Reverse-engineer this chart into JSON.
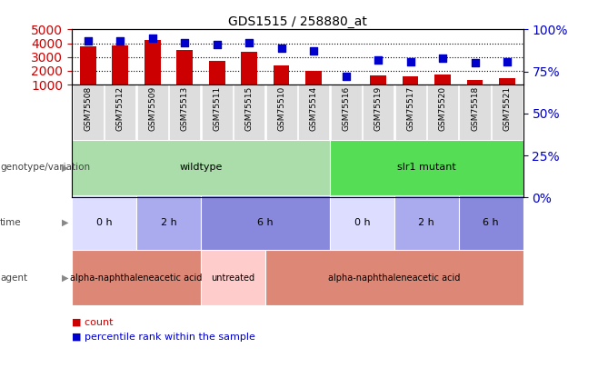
{
  "title": "GDS1515 / 258880_at",
  "samples": [
    "GSM75508",
    "GSM75512",
    "GSM75509",
    "GSM75513",
    "GSM75511",
    "GSM75515",
    "GSM75510",
    "GSM75514",
    "GSM75516",
    "GSM75519",
    "GSM75517",
    "GSM75520",
    "GSM75518",
    "GSM75521"
  ],
  "counts": [
    3780,
    3870,
    4230,
    3500,
    2720,
    3380,
    2360,
    1990,
    950,
    1640,
    1570,
    1720,
    1330,
    1500
  ],
  "percentiles": [
    93,
    93,
    95,
    92,
    91,
    92,
    89,
    87,
    72,
    82,
    81,
    83,
    80,
    81
  ],
  "ylim_left": [
    1000,
    5000
  ],
  "ylim_right": [
    0,
    100
  ],
  "yticks_left": [
    1000,
    2000,
    3000,
    4000,
    5000
  ],
  "yticks_right": [
    0,
    25,
    50,
    75,
    100
  ],
  "bar_color": "#cc0000",
  "dot_color": "#0000cc",
  "bar_width": 0.5,
  "dot_size": 40,
  "genotype_blocks": [
    {
      "label": "wildtype",
      "start": 0,
      "end": 8,
      "color": "#aaddaa"
    },
    {
      "label": "slr1 mutant",
      "start": 8,
      "end": 14,
      "color": "#55dd55"
    }
  ],
  "time_blocks": [
    {
      "label": "0 h",
      "start": 0,
      "end": 2,
      "color": "#ddddff"
    },
    {
      "label": "2 h",
      "start": 2,
      "end": 4,
      "color": "#aaaaee"
    },
    {
      "label": "6 h",
      "start": 4,
      "end": 8,
      "color": "#8888dd"
    },
    {
      "label": "0 h",
      "start": 8,
      "end": 10,
      "color": "#ddddff"
    },
    {
      "label": "2 h",
      "start": 10,
      "end": 12,
      "color": "#aaaaee"
    },
    {
      "label": "6 h",
      "start": 12,
      "end": 14,
      "color": "#8888dd"
    }
  ],
  "agent_blocks": [
    {
      "label": "alpha-naphthaleneacetic acid",
      "start": 0,
      "end": 4,
      "color": "#dd8877"
    },
    {
      "label": "untreated",
      "start": 4,
      "end": 6,
      "color": "#ffcccc"
    },
    {
      "label": "alpha-naphthaleneacetic acid",
      "start": 6,
      "end": 14,
      "color": "#dd8877"
    }
  ],
  "background_color": "#ffffff",
  "dotted_lines": [
    2000,
    3000,
    4000
  ],
  "tick_color_left": "#cc0000",
  "tick_color_right": "#0000cc",
  "xlabel_bg": "#dddddd",
  "row_label_color": "#444444",
  "arrow_color": "#888888"
}
